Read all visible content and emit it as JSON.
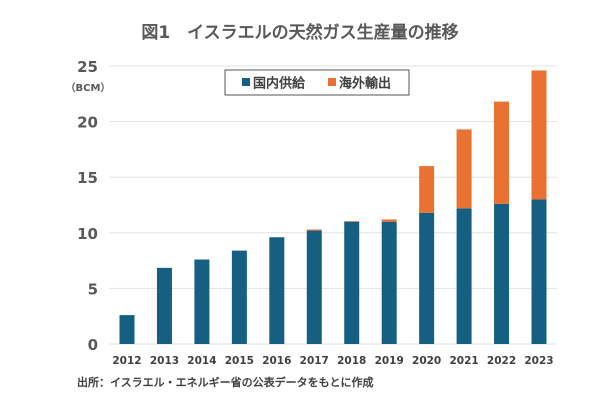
{
  "chart_data": {
    "type": "bar",
    "stacked": true,
    "title": "図1　イスラエルの天然ガス生産量の推移",
    "xlabel": "",
    "ylabel": "",
    "unit_label": "（BCM）",
    "ylim": [
      0,
      25
    ],
    "yticks": [
      "0",
      "5",
      "10",
      "15",
      "20",
      "25"
    ],
    "ytick_values": [
      0,
      5,
      10,
      15,
      20,
      25
    ],
    "grid": true,
    "legend_position": "top-center",
    "categories": [
      "2012",
      "2013",
      "2014",
      "2015",
      "2016",
      "2017",
      "2018",
      "2019",
      "2020",
      "2021",
      "2022",
      "2023"
    ],
    "series": [
      {
        "name": "国内供給",
        "color": "#156082",
        "values": [
          2.6,
          6.85,
          7.6,
          8.4,
          9.6,
          10.2,
          11.0,
          11.0,
          11.8,
          12.2,
          12.6,
          13.0
        ]
      },
      {
        "name": "海外輸出",
        "color": "#E97132",
        "values": [
          0,
          0,
          0,
          0,
          0,
          0.1,
          0.05,
          0.2,
          4.2,
          7.1,
          9.2,
          11.6
        ]
      }
    ],
    "source": "出所：イスラエル・エネルギー省の公表データをもとに作成"
  }
}
